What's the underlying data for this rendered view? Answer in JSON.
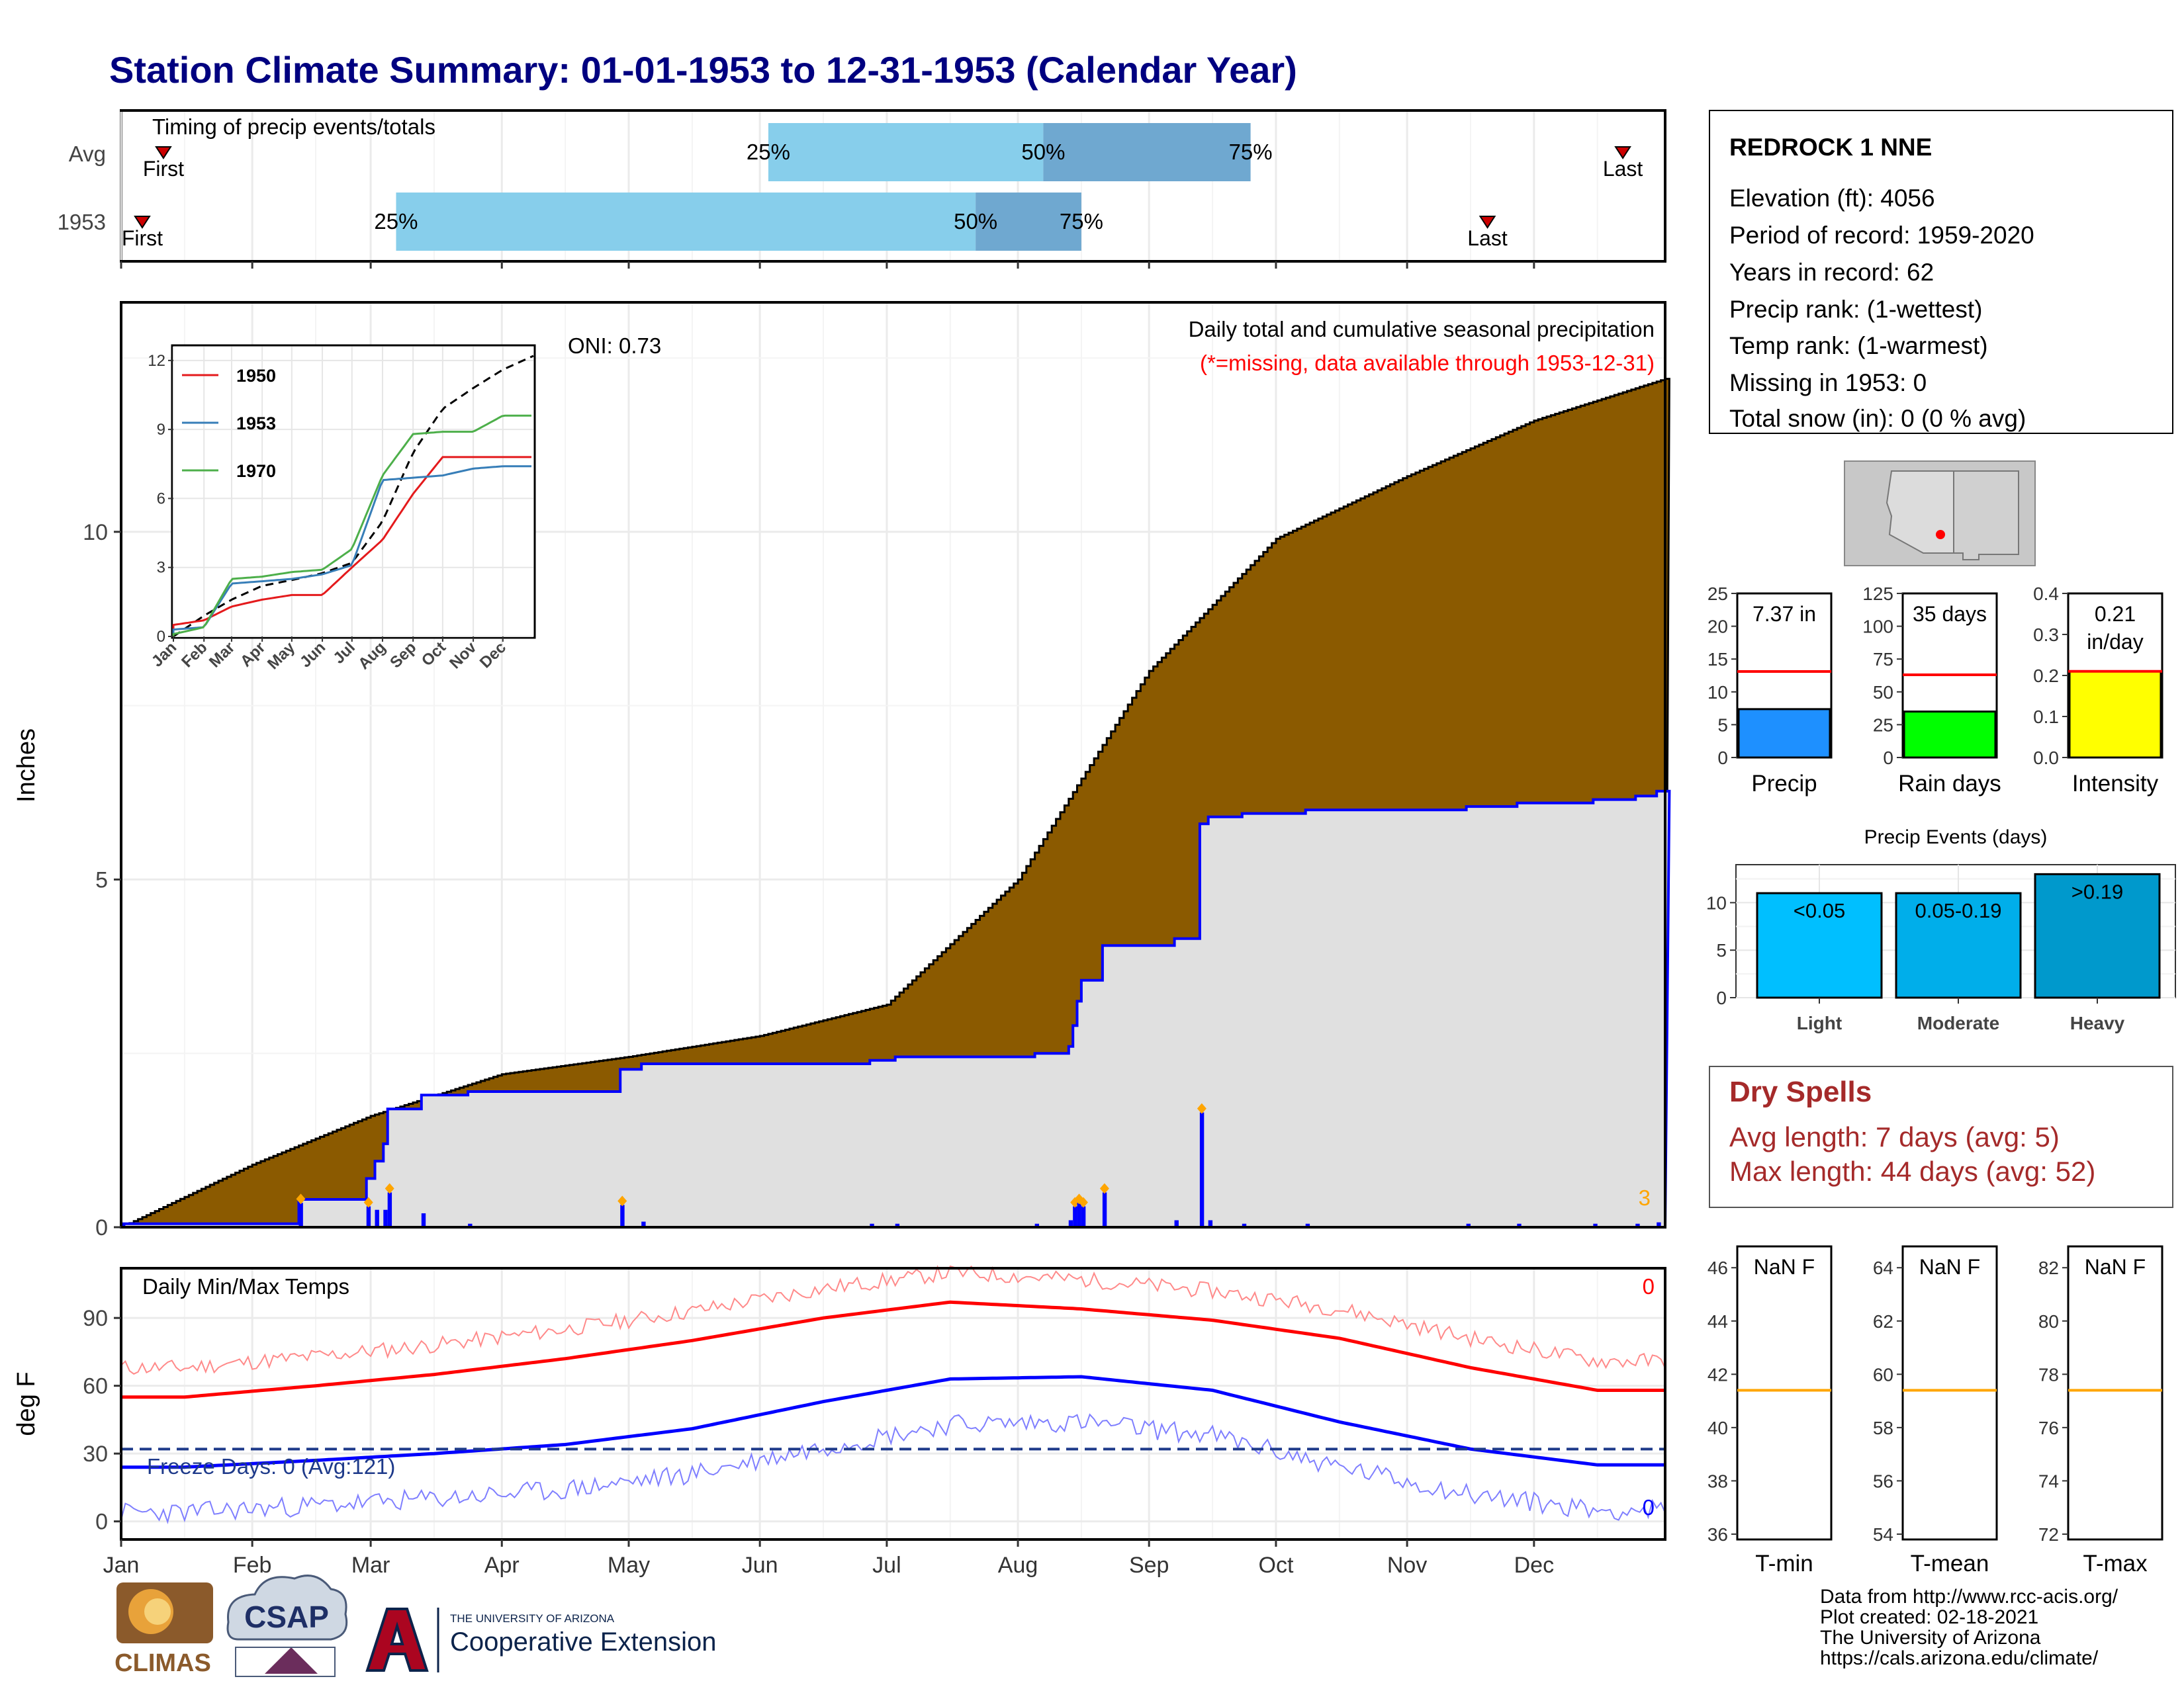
{
  "title": "Station Climate Summary: 01-01-1953 to 12-31-1953 (Calendar Year)",
  "colors": {
    "title": "#000080",
    "brown_fill": "#8B5A00",
    "gray_fill": "#E0E0E0",
    "blue": "#0000FF",
    "red": "#FF0000",
    "light_blue_bar": "#87CEEB",
    "mid_blue_bar": "#6FA8D0",
    "dry_spell_text": "#A52A2A",
    "orange": "#FFA500",
    "green": "#00FF00",
    "yellow": "#FFFF00",
    "precip_bar_blue": "#1E90FF",
    "events_light": "#00BFFF",
    "events_moderate": "#00AEEA",
    "events_heavy": "#0099CC"
  },
  "month_labels": [
    "Jan",
    "Feb",
    "Mar",
    "Apr",
    "May",
    "Jun",
    "Jul",
    "Aug",
    "Sep",
    "Oct",
    "Nov",
    "Dec"
  ],
  "timing": {
    "label": "Timing of precip events/totals",
    "rows": [
      {
        "name": "Avg",
        "first_label": "First",
        "last_label": "Last",
        "first_doy": 10,
        "last_doy": 355,
        "p25_doy": 153,
        "p50_doy": 218,
        "p75_doy": 267,
        "p25_label": "25%",
        "p50_label": "50%",
        "p75_label": "75%"
      },
      {
        "name": "1953",
        "first_label": "First",
        "last_label": "Last",
        "first_doy": 5,
        "last_doy": 323,
        "p25_doy": 65,
        "p50_doy": 202,
        "p75_doy": 227,
        "p25_label": "25%",
        "p50_label": "50%",
        "p75_label": "75%"
      }
    ]
  },
  "precip_panel": {
    "ylabel": "Inches",
    "yticks": [
      0,
      5,
      10
    ],
    "title_line1": "Daily total and cumulative seasonal precipitation",
    "title_line2": "(*=missing, data available through 1953-12-31)",
    "oni_label": "ONI: 0.73",
    "corner_count": "3",
    "ymax": 13.3
  },
  "inset": {
    "yticks": [
      0,
      3,
      6,
      9,
      12
    ],
    "xlabels": [
      "Jan",
      "Feb",
      "Mar",
      "Apr",
      "May",
      "Jun",
      "Jul",
      "Aug",
      "Sep",
      "Oct",
      "Nov",
      "Dec"
    ],
    "legend": [
      {
        "name": "1950",
        "color": "#E41A1C"
      },
      {
        "name": "1953",
        "color": "#377EB8"
      },
      {
        "name": "1970",
        "color": "#4DAF4A"
      }
    ]
  },
  "temp_panel": {
    "ylabel": "deg F",
    "title": "Daily Min/Max Temps",
    "yticks": [
      0,
      30,
      60,
      90
    ],
    "freeze_label": "Freeze Days: 0 (Avg:121)",
    "corner_max": "0",
    "corner_min": "0",
    "freeze_line": 32
  },
  "station": {
    "name": "REDROCK 1 NNE",
    "lines": [
      "Elevation (ft): 4056",
      "Period of record: 1959-2020",
      "Years in record: 62",
      "Precip rank:  (1-wettest)",
      "Temp rank:  (1-warmest)",
      "Missing in 1953: 0",
      "Total snow (in): 0 (0 % avg)"
    ]
  },
  "mini_bars": [
    {
      "xlabel": "Precip",
      "value": 7.37,
      "label": "7.37 in",
      "avg": 13.1,
      "ymax": 25,
      "yticks": [
        0,
        5,
        10,
        15,
        20,
        25
      ],
      "color": "#1E90FF"
    },
    {
      "xlabel": "Rain days",
      "value": 35,
      "label": "35 days",
      "avg": 63,
      "ymax": 125,
      "yticks": [
        0,
        25,
        50,
        75,
        100,
        125
      ],
      "color": "#00FF00"
    },
    {
      "xlabel": "Intensity",
      "value": 0.21,
      "label": "0.21\nin/day",
      "label_line1": "0.21",
      "label_line2": "in/day",
      "avg": 0.21,
      "ymax": 0.4,
      "yticks": [
        0.0,
        0.1,
        0.2,
        0.3,
        0.4
      ],
      "color": "#FFFF00"
    }
  ],
  "events": {
    "title": "Precip Events (days)",
    "yticks": [
      0,
      5,
      10
    ],
    "bars": [
      {
        "category": "Light",
        "label": "<0.05",
        "value": 11
      },
      {
        "category": "Moderate",
        "label": "0.05-0.19",
        "value": 11
      },
      {
        "category": "Heavy",
        "label": ">0.19",
        "value": 13
      }
    ]
  },
  "dry_spells": {
    "title": "Dry Spells",
    "avg_line": "Avg length: 7 days (avg: 5)",
    "max_line": "Max length: 44 days (avg: 52)"
  },
  "temp_mini": [
    {
      "xlabel": "T-min",
      "label": "NaN F",
      "avg": 41.4,
      "yticks": [
        36,
        38,
        40,
        42,
        44,
        46
      ],
      "ymin": 35.8,
      "ymax": 46.8
    },
    {
      "xlabel": "T-mean",
      "label": "NaN F",
      "avg": 59.4,
      "yticks": [
        54,
        56,
        58,
        60,
        62,
        64
      ],
      "ymin": 53.8,
      "ymax": 64.8
    },
    {
      "xlabel": "T-max",
      "label": "NaN F",
      "avg": 77.4,
      "yticks": [
        72,
        74,
        76,
        78,
        80,
        82
      ],
      "ymin": 71.8,
      "ymax": 82.8
    }
  ],
  "footer": {
    "lines": [
      "Data from http://www.rcc-acis.org/",
      "Plot created: 02-18-2021",
      "The University of Arizona",
      "https://cals.arizona.edu/climate/"
    ]
  },
  "logos": {
    "climas": "CLIMAS",
    "csap": "CSAP",
    "ua_small": "THE UNIVERSITY OF ARIZONA",
    "ua_big": "Cooperative Extension"
  },
  "chart_data": [
    {
      "type": "area",
      "title": "Daily total and cumulative seasonal precipitation",
      "ylabel": "Inches",
      "ylim": [
        0,
        13.3
      ],
      "series": [
        {
          "name": "cumulative",
          "x": [
            "Jan",
            "Feb",
            "Mar",
            "Apr",
            "May",
            "Jun",
            "Jul",
            "Aug",
            "Sep",
            "Oct",
            "Nov",
            "Dec",
            "Dec-31"
          ],
          "values": [
            0.0,
            0.9,
            1.6,
            2.2,
            2.45,
            2.75,
            3.2,
            5.0,
            8.0,
            9.9,
            10.8,
            11.6,
            12.2
          ]
        },
        {
          "x": [
            "Jan",
            "Feb",
            "Mar",
            "Apr",
            "May",
            "Jun",
            "Jul",
            "Aug",
            "Sep",
            "Oct",
            "Nov",
            "Dec",
            "Dec-31"
          ],
          "values": [
            0.05,
            0.05,
            0.4,
            1.9,
            2.35,
            2.4,
            2.55,
            2.65,
            6.75,
            6.85,
            6.95,
            7.25,
            7.37
          ]
        }
      ]
    },
    {
      "type": "line",
      "title": "Daily Min/Max Temps",
      "ylabel": "deg F",
      "ylim": [
        -8,
        112
      ],
      "x": [
        "Jan",
        "Feb",
        "Mar",
        "Apr",
        "May",
        "Jun",
        "Jul",
        "Aug",
        "Sep",
        "Oct",
        "Nov",
        "Dec"
      ],
      "series": [
        {
          "values": [
            55,
            60,
            65,
            72,
            80,
            90,
            97,
            94,
            89,
            81,
            68,
            58
          ]
        },
        {
          "values": [
            24,
            27,
            30,
            34,
            41,
            53,
            63,
            64,
            58,
            44,
            32,
            25
          ]
        }
      ]
    },
    {
      "type": "line",
      "x": [
        "Jan",
        "Feb",
        "Mar",
        "Apr",
        "May",
        "Jun",
        "Jul",
        "Aug",
        "Sep",
        "Oct",
        "Nov",
        "Dec"
      ],
      "ylim": [
        0,
        12
      ],
      "series": [
        {
          "name": "1950",
          "values": [
            0.5,
            0.7,
            1.3,
            1.6,
            1.8,
            1.8,
            3.0,
            4.2,
            6.2,
            7.8,
            7.8,
            7.8
          ]
        },
        {
          "name": "1953",
          "values": [
            0.3,
            0.4,
            2.3,
            2.4,
            2.5,
            2.7,
            3.1,
            6.8,
            6.9,
            7.0,
            7.3,
            7.4
          ]
        },
        {
          "name": "1970",
          "values": [
            0.1,
            0.4,
            2.5,
            2.6,
            2.8,
            2.9,
            3.8,
            7.0,
            8.8,
            8.9,
            8.9,
            9.6
          ]
        }
      ]
    },
    {
      "type": "bar",
      "title": "Precip Events (days)",
      "categories": [
        "Light",
        "Moderate",
        "Heavy"
      ],
      "values": [
        11,
        11,
        13
      ]
    }
  ]
}
